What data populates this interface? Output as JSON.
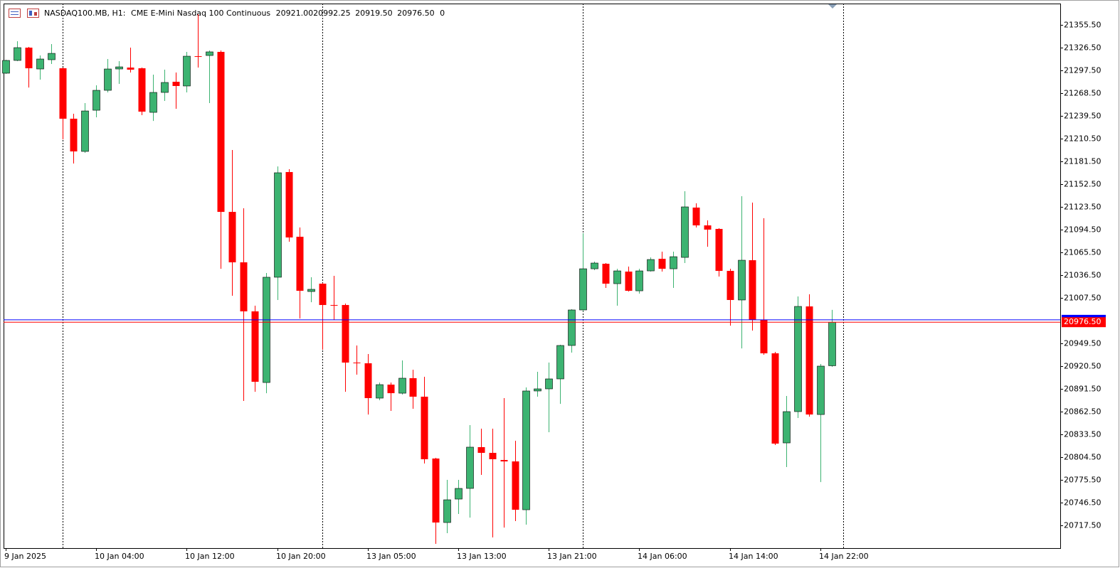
{
  "header": {
    "symbol": "NASDAQ100.MB, H1:",
    "description": "CME E-Mini Nasdaq 100 Continuous",
    "quote_labels": [
      "20921.00",
      "20992.25",
      "20919.50",
      "20976.50"
    ],
    "volume": 0
  },
  "chart_data": {
    "type": "candlestick",
    "categories": [
      "9 Jan 2025",
      null,
      null,
      null,
      null,
      null,
      null,
      null,
      "10 Jan 04:00",
      null,
      null,
      null,
      null,
      null,
      null,
      null,
      "10 Jan 12:00",
      null,
      null,
      null,
      null,
      null,
      null,
      null,
      "10 Jan 20:00",
      null,
      null,
      null,
      null,
      null,
      null,
      null,
      "13 Jan 05:00",
      null,
      null,
      null,
      null,
      null,
      null,
      null,
      "13 Jan 13:00",
      null,
      null,
      null,
      null,
      null,
      null,
      null,
      "13 Jan 21:00",
      null,
      null,
      null,
      null,
      null,
      null,
      null,
      "14 Jan 06:00",
      null,
      null,
      null,
      null,
      null,
      null,
      null,
      "14 Jan 14:00",
      null,
      null,
      null,
      null,
      null,
      null,
      null,
      "14 Jan 22:00",
      null
    ],
    "open": [
      21293.9,
      21310.2,
      21326.5,
      21299.3,
      21311.1,
      21300.2,
      21235.9,
      21194.2,
      21246.7,
      21272.1,
      21299.3,
      21301.1,
      21300.2,
      21244.0,
      21269.4,
      21283.0,
      21277.6,
      21315.6,
      21316.5,
      21321.1,
      21117.1,
      21052.8,
      20990.3,
      20899.6,
      21033.8,
      21167.9,
      21085.4,
      21015.6,
      21025.6,
      20998.4,
      20998.4,
      20925.0,
      20924.1,
      20879.7,
      20896.9,
      20886.0,
      20905.1,
      20881.5,
      20802.7,
      20721.1,
      20751.0,
      20764.6,
      20817.2,
      20809.9,
      20800.8,
      20799.0,
      20737.4,
      20888.8,
      20891.5,
      20904.2,
      20946.8,
      20992.1,
      21044.6,
      21051.0,
      21025.6,
      21041.0,
      21016.5,
      21041.9,
      21057.3,
      21044.6,
      21059.1,
      21122.6,
      21099.9,
      21095.4,
      21041.9,
      21004.8,
      21055.5,
      20979.4,
      20936.8,
      20822.6,
      20862.5,
      20996.6,
      20858.8,
      20921.0
    ],
    "high": [
      21311.1,
      21334.7,
      21327.4,
      21316.5,
      21331.0,
      21301.1,
      21242.2,
      21255.8,
      21278.5,
      21312.0,
      21309.3,
      21326.5,
      21301.1,
      21292.1,
      21298.4,
      21294.8,
      21321.1,
      21369.1,
      21322.9,
      21322.9,
      21196.0,
      21121.7,
      20997.5,
      21039.2,
      21175.1,
      21171.5,
      21097.2,
      21033.8,
      21026.5,
      21035.6,
      21000.2,
      20946.8,
      20935.9,
      20899.6,
      20899.6,
      20927.7,
      20915.9,
      20906.9,
      20803.6,
      20775.5,
      20775.5,
      20845.3,
      20840.7,
      20840.7,
      20879.7,
      20825.3,
      20893.3,
      20913.2,
      20925.0,
      20947.7,
      20993.0,
      21090.0,
      21053.7,
      21051.9,
      21044.6,
      21047.4,
      21044.6,
      21059.1,
      21066.4,
      21066.4,
      21143.4,
      21128.0,
      21106.3,
      21096.3,
      21044.6,
      21137.1,
      21128.9,
      21109.0,
      20938.6,
      20882.4,
      21009.3,
      21012.0,
      20923.2,
      20992.25
    ],
    "low": [
      21293.0,
      21309.3,
      21275.7,
      21285.7,
      21305.7,
      21209.6,
      21178.8,
      21192.4,
      21237.7,
      21269.4,
      21280.3,
      21294.8,
      21240.4,
      21233.1,
      21258.5,
      21248.6,
      21269.4,
      21301.1,
      21255.8,
      21044.6,
      21010.2,
      20876.1,
      20887.8,
      20886.0,
      21004.8,
      21079.1,
      20981.2,
      21002.0,
      20941.3,
      20979.4,
      20887.8,
      20909.6,
      20858.8,
      20877.0,
      20863.4,
      20884.2,
      20866.1,
      20796.3,
      20693.9,
      20707.5,
      20732.0,
      20727.4,
      20781.8,
      20702.1,
      20714.7,
      20722.9,
      20718.4,
      20881.5,
      20836.2,
      20872.4,
      20937.7,
      20990.3,
      21042.8,
      21020.2,
      20997.5,
      21015.6,
      21012.9,
      21041.0,
      21041.0,
      21020.2,
      21051.9,
      21097.2,
      21072.7,
      21034.7,
      20972.1,
      20943.1,
      20965.8,
      20935.0,
      20819.9,
      20791.8,
      20854.3,
      20856.1,
      20772.7,
      20919.5
    ],
    "close": [
      21310.2,
      21326.5,
      21300.2,
      21312.0,
      21319.2,
      21235.9,
      21194.2,
      21245.8,
      21272.1,
      21299.3,
      21302.0,
      21298.4,
      21244.9,
      21269.4,
      21282.1,
      21277.6,
      21315.6,
      21314.7,
      21321.1,
      21117.1,
      21052.8,
      20990.3,
      20900.5,
      21033.8,
      21167.0,
      21084.5,
      21016.5,
      21018.4,
      20998.4,
      20997.5,
      20925.0,
      20924.1,
      20879.7,
      20896.9,
      20886.0,
      20905.1,
      20881.5,
      20801.8,
      20721.1,
      20750.1,
      20764.6,
      20817.2,
      20809.9,
      20801.8,
      20799.0,
      20737.4,
      20888.8,
      20891.5,
      20904.2,
      20946.8,
      20992.1,
      21044.6,
      21051.9,
      21025.6,
      21041.9,
      21016.5,
      21041.9,
      21056.4,
      21044.6,
      21060.0,
      21123.5,
      21099.9,
      21094.5,
      21041.9,
      21004.8,
      21055.5,
      20979.4,
      20936.8,
      20821.7,
      20862.5,
      20996.6,
      20858.8,
      20920.5,
      20976.5
    ],
    "up_color": "#3cb371",
    "down_color": "#ff0000",
    "ylim": [
      20688.5,
      21382.7
    ],
    "yticks": [
      {
        "value": 21355.5,
        "label": "21355.50"
      },
      {
        "value": 21326.5,
        "label": "21326.50"
      },
      {
        "value": 21297.5,
        "label": "21297.50"
      },
      {
        "value": 21268.5,
        "label": "21268.50"
      },
      {
        "value": 21239.5,
        "label": "21239.50"
      },
      {
        "value": 21210.5,
        "label": "21210.50"
      },
      {
        "value": 21181.5,
        "label": "21181.50"
      },
      {
        "value": 21152.5,
        "label": "21152.50"
      },
      {
        "value": 21123.5,
        "label": "21123.50"
      },
      {
        "value": 21094.5,
        "label": "21094.50"
      },
      {
        "value": 21065.5,
        "label": "21065.50"
      },
      {
        "value": 21036.5,
        "label": "21036.50"
      },
      {
        "value": 21007.5,
        "label": "21007.50"
      },
      {
        "value": 20949.5,
        "label": "20949.50"
      },
      {
        "value": 20920.5,
        "label": "20920.50"
      },
      {
        "value": 20891.5,
        "label": "20891.50"
      },
      {
        "value": 20862.5,
        "label": "20862.50"
      },
      {
        "value": 20833.5,
        "label": "20833.50"
      },
      {
        "value": 20804.5,
        "label": "20804.50"
      },
      {
        "value": 20775.5,
        "label": "20775.50"
      },
      {
        "value": 20746.5,
        "label": "20746.50"
      },
      {
        "value": 20717.5,
        "label": "20717.50"
      }
    ],
    "current_price": {
      "value": 20976.5,
      "label": "20976.50"
    },
    "ask": 20979.5,
    "grid": false
  }
}
